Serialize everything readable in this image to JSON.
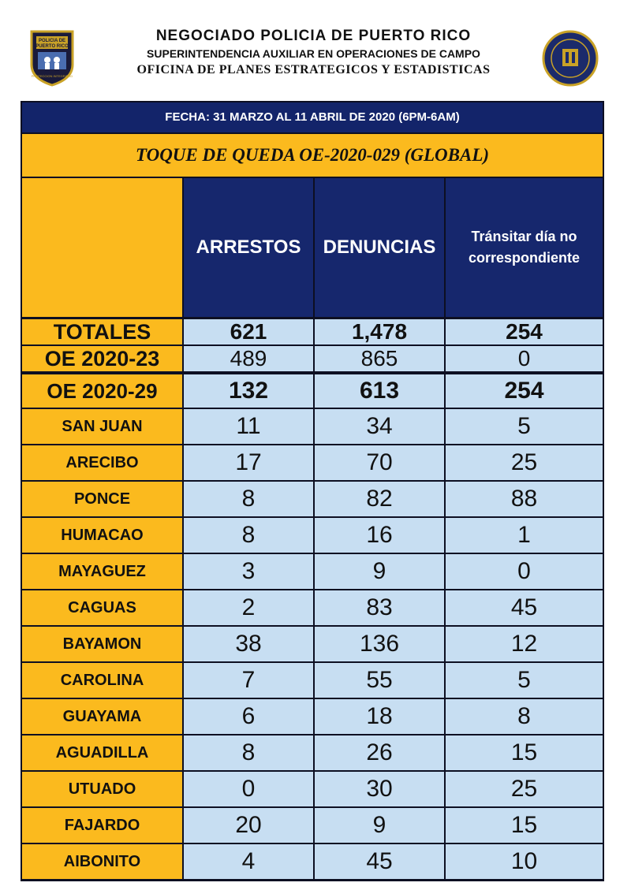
{
  "header": {
    "line1": "NEGOCIADO POLICIA DE PUERTO RICO",
    "line2": "SUPERINTENDENCIA AUXILIAR EN OPERACIONES DE CAMPO",
    "line3": "OFICINA DE PLANES ESTRATEGICOS Y ESTADISTICAS",
    "badge_text_top": "POLICIA DE",
    "badge_text_mid": "PUERTO RICO",
    "badge_text_bottom": "PROTECCION INTEGRIDAD",
    "badge_icon": "police-badge-icon",
    "seal_icon": "official-seal-icon"
  },
  "table": {
    "date_line": "FECHA: 31 MARZO AL 11 ABRIL DE 2020 (6PM-6AM)",
    "curfew_title": "TOQUE DE QUEDA OE-2020-029 (GLOBAL)",
    "columns": [
      "ARRESTOS",
      "DENUNCIAS",
      "Tránsitar día no correspondiente"
    ],
    "summary_rows": [
      {
        "label": "TOTALES",
        "values": [
          "621",
          "1,478",
          "254"
        ]
      },
      {
        "label": "OE 2020-23",
        "values": [
          "489",
          "865",
          "0"
        ]
      },
      {
        "label": "OE 2020-29",
        "values": [
          "132",
          "613",
          "254"
        ]
      }
    ],
    "region_rows": [
      {
        "label": "SAN JUAN",
        "values": [
          "11",
          "34",
          "5"
        ]
      },
      {
        "label": "ARECIBO",
        "values": [
          "17",
          "70",
          "25"
        ]
      },
      {
        "label": "PONCE",
        "values": [
          "8",
          "82",
          "88"
        ]
      },
      {
        "label": "HUMACAO",
        "values": [
          "8",
          "16",
          "1"
        ]
      },
      {
        "label": "MAYAGUEZ",
        "values": [
          "3",
          "9",
          "0"
        ]
      },
      {
        "label": "CAGUAS",
        "values": [
          "2",
          "83",
          "45"
        ]
      },
      {
        "label": "BAYAMON",
        "values": [
          "38",
          "136",
          "12"
        ]
      },
      {
        "label": "CAROLINA",
        "values": [
          "7",
          "55",
          "5"
        ]
      },
      {
        "label": "GUAYAMA",
        "values": [
          "6",
          "18",
          "8"
        ]
      },
      {
        "label": "AGUADILLA",
        "values": [
          "8",
          "26",
          "15"
        ]
      },
      {
        "label": "UTUADO",
        "values": [
          "0",
          "30",
          "25"
        ]
      },
      {
        "label": "FAJARDO",
        "values": [
          "20",
          "9",
          "15"
        ]
      },
      {
        "label": "AIBONITO",
        "values": [
          "4",
          "45",
          "10"
        ]
      }
    ]
  },
  "colors": {
    "navy": "#16276d",
    "gold": "#fbba1e",
    "light_blue": "#c7def2",
    "border": "#0d0f22"
  }
}
